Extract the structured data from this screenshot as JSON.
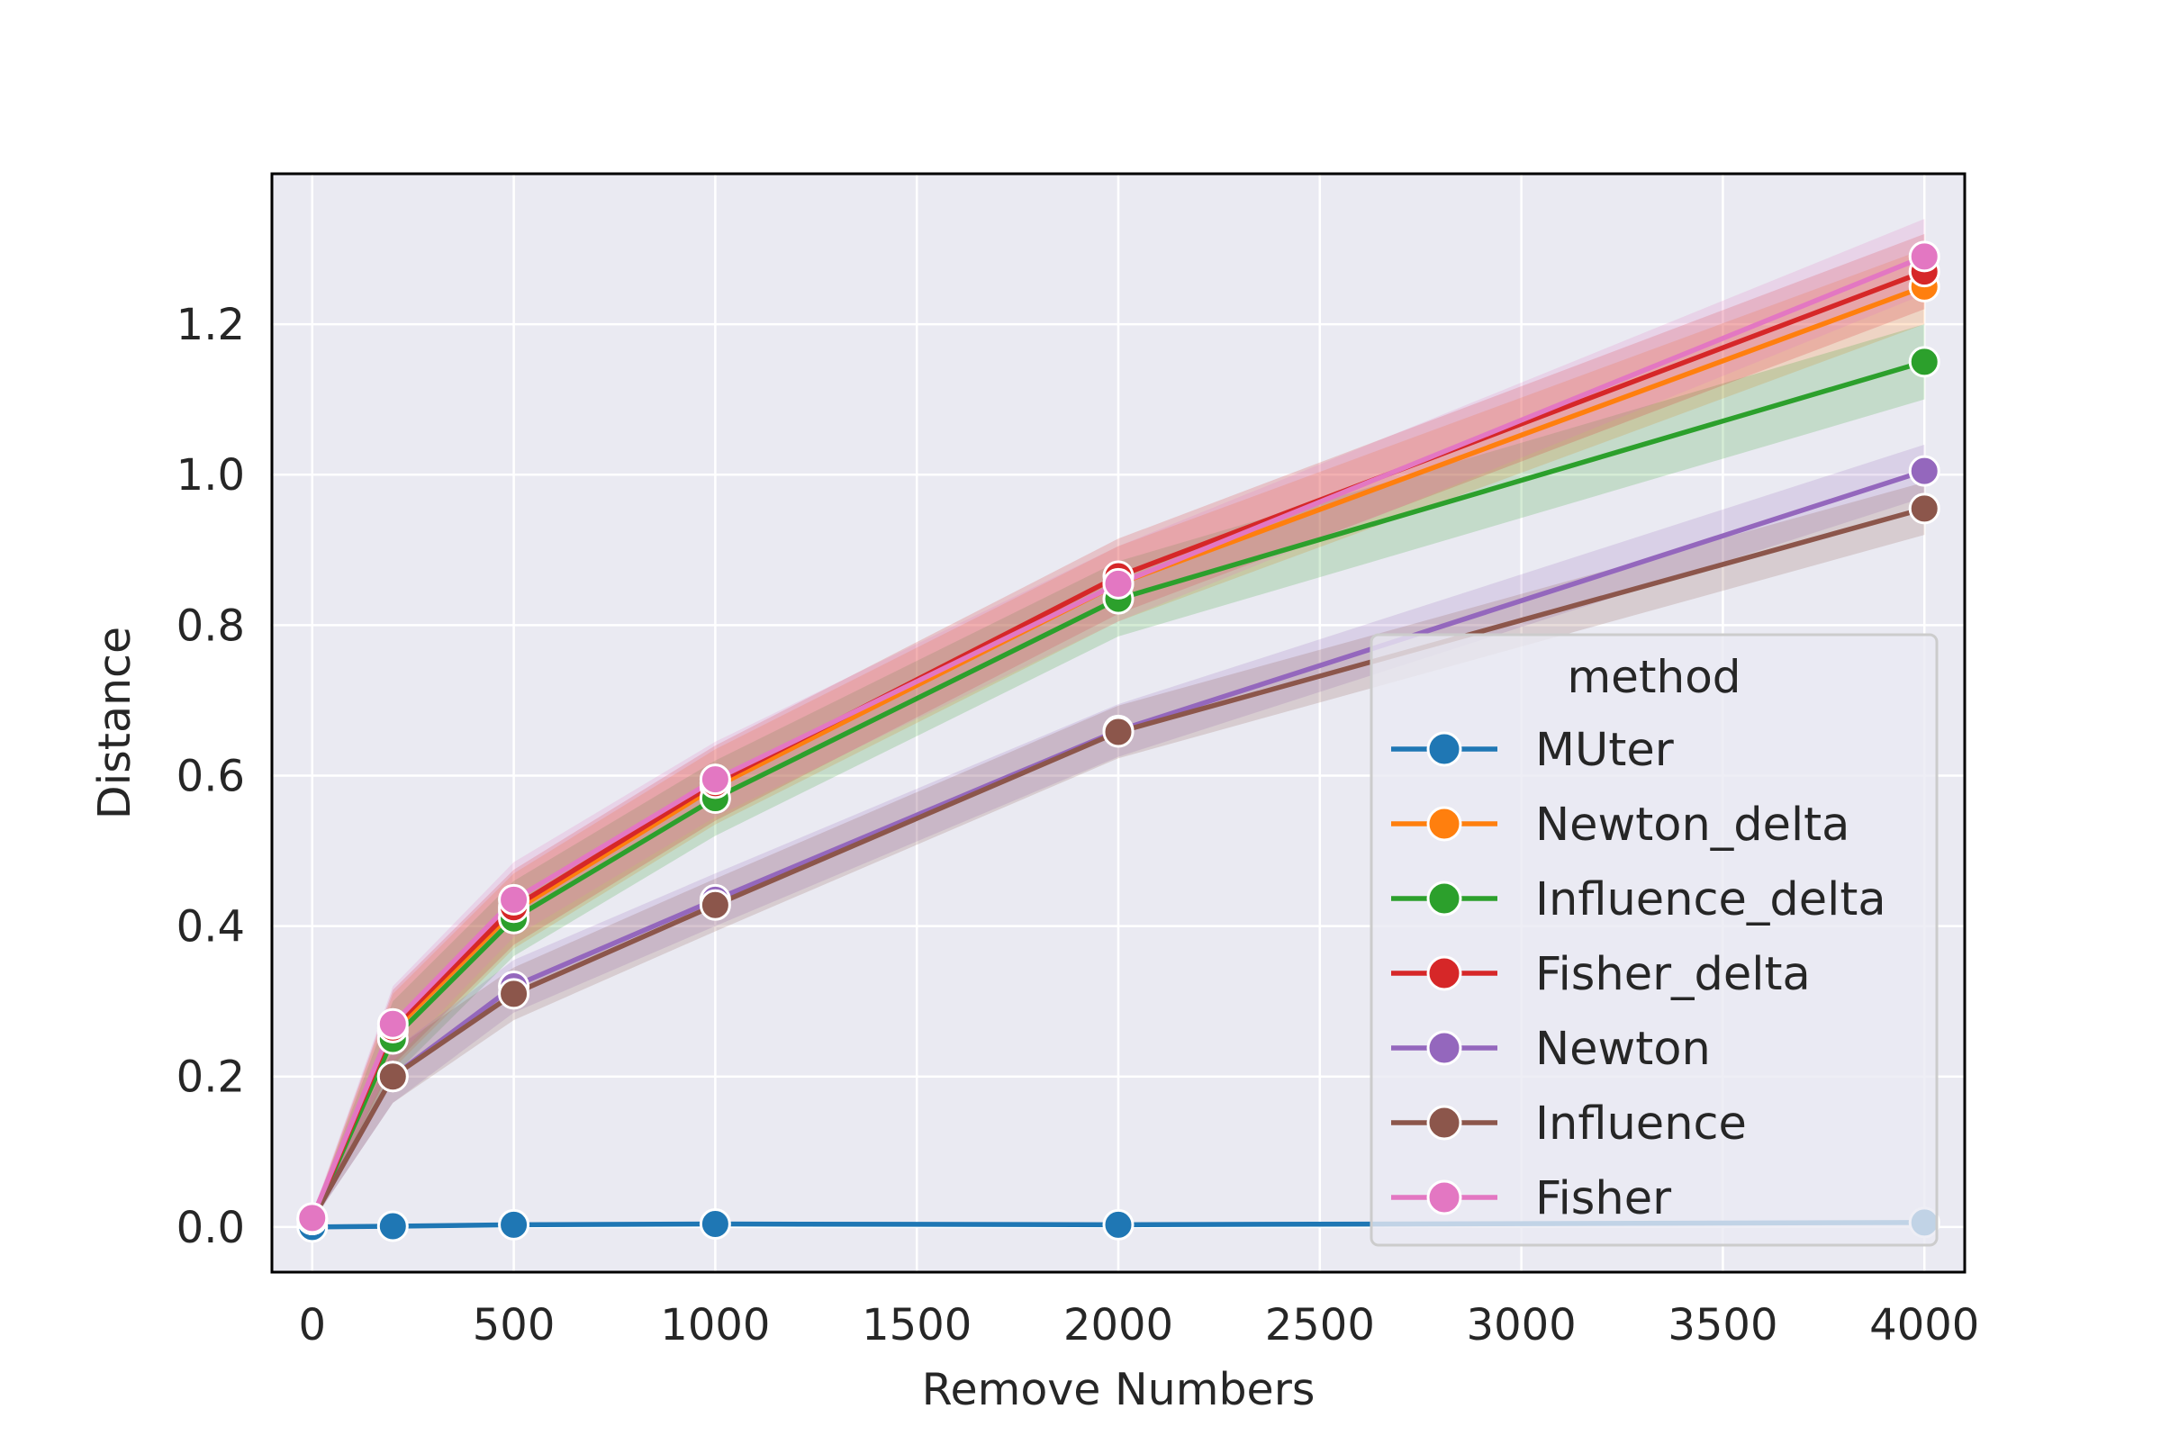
{
  "chart_data": {
    "type": "line",
    "title": "",
    "xlabel": "Remove Numbers",
    "ylabel": "Distance",
    "xlim": [
      -100,
      4100
    ],
    "ylim": [
      -0.06,
      1.4
    ],
    "xticks": [
      0,
      500,
      1000,
      1500,
      2000,
      2500,
      3000,
      3500,
      4000
    ],
    "xtick_labels": [
      "0",
      "500",
      "1000",
      "1500",
      "2000",
      "2500",
      "3000",
      "3500",
      "4000"
    ],
    "yticks": [
      0.0,
      0.2,
      0.4,
      0.6,
      0.8,
      1.0,
      1.2
    ],
    "ytick_labels": [
      "0.0",
      "0.2",
      "0.4",
      "0.6",
      "0.8",
      "1.0",
      "1.2"
    ],
    "grid": true,
    "background": "#eaeaf2",
    "x": [
      0,
      200,
      500,
      1000,
      2000,
      4000
    ],
    "legend": {
      "title": "method",
      "position": "lower-right"
    },
    "series": [
      {
        "name": "MUter",
        "color": "#1f77b4",
        "values": [
          0.0,
          0.001,
          0.003,
          0.004,
          0.003,
          0.006
        ],
        "band": 0.002
      },
      {
        "name": "Newton_delta",
        "color": "#ff7f0e",
        "values": [
          0.01,
          0.26,
          0.42,
          0.585,
          0.855,
          1.25
        ],
        "band": 0.05
      },
      {
        "name": "Influence_delta",
        "color": "#2ca02c",
        "values": [
          0.01,
          0.25,
          0.41,
          0.57,
          0.835,
          1.15
        ],
        "band": 0.05
      },
      {
        "name": "Fisher_delta",
        "color": "#d62728",
        "values": [
          0.01,
          0.265,
          0.425,
          0.59,
          0.865,
          1.27
        ],
        "band": 0.05
      },
      {
        "name": "Newton",
        "color": "#9467bd",
        "values": [
          0.01,
          0.2,
          0.32,
          0.435,
          0.66,
          1.005
        ],
        "band": 0.035
      },
      {
        "name": "Influence",
        "color": "#8c564b",
        "values": [
          0.01,
          0.2,
          0.31,
          0.428,
          0.658,
          0.955
        ],
        "band": 0.035
      },
      {
        "name": "Fisher",
        "color": "#e377c2",
        "values": [
          0.012,
          0.27,
          0.435,
          0.595,
          0.855,
          1.29
        ],
        "band": 0.05
      }
    ]
  }
}
